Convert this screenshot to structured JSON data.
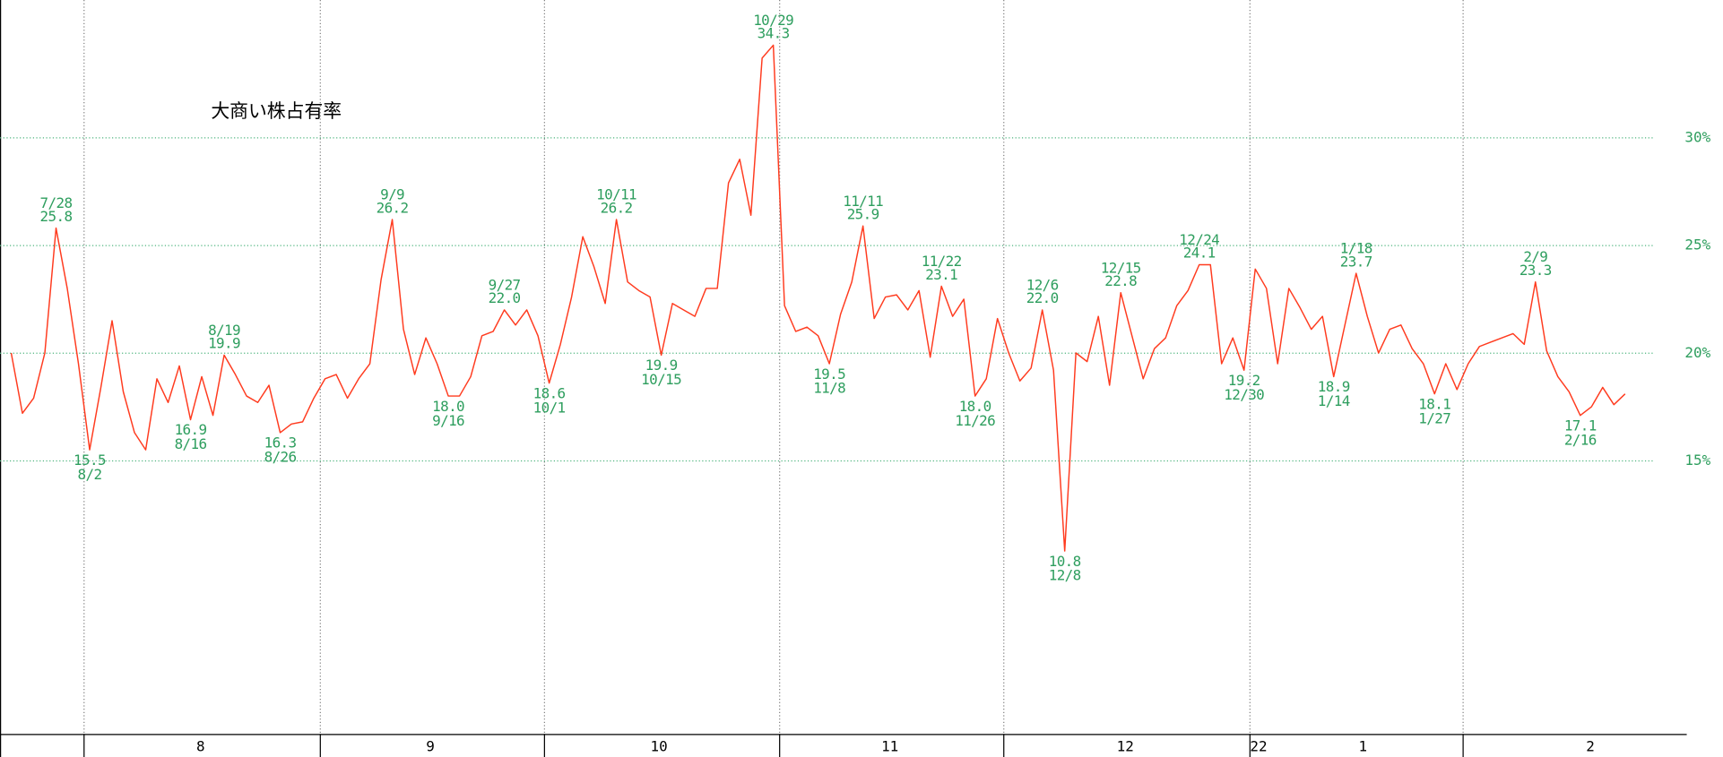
{
  "chart_data": {
    "type": "line",
    "title": "大商い株占有率",
    "color": "#ff3b1f",
    "categories": [
      null,
      null,
      null,
      null,
      "7/28",
      null,
      null,
      "8/2",
      null,
      null,
      null,
      null,
      null,
      null,
      null,
      null,
      "8/16",
      null,
      null,
      "8/19",
      null,
      null,
      null,
      null,
      "8/26",
      null,
      null,
      null,
      null,
      null,
      null,
      null,
      null,
      null,
      "9/9",
      null,
      null,
      null,
      null,
      "9/16",
      null,
      null,
      null,
      null,
      "9/27",
      null,
      null,
      null,
      "10/1",
      null,
      null,
      null,
      null,
      null,
      "10/11",
      null,
      null,
      null,
      "10/15",
      null,
      null,
      null,
      null,
      null,
      null,
      null,
      null,
      null,
      "10/29",
      null,
      null,
      null,
      null,
      "11/8",
      null,
      null,
      "11/11",
      null,
      null,
      null,
      null,
      null,
      null,
      "11/22",
      null,
      null,
      "11/26",
      null,
      null,
      null,
      null,
      null,
      "12/6",
      null,
      "12/8",
      null,
      null,
      null,
      null,
      "12/15",
      null,
      null,
      null,
      null,
      null,
      null,
      "12/24",
      null,
      null,
      null,
      "12/30",
      null,
      null,
      null,
      null,
      null,
      null,
      null,
      "1/14",
      null,
      "1/18",
      null,
      null,
      null,
      null,
      null,
      null,
      "1/27",
      null,
      null,
      null,
      null,
      null,
      null,
      null,
      null,
      "2/9",
      null,
      null,
      null,
      "2/16",
      null,
      null,
      null,
      null
    ],
    "values": [
      20.0,
      17.2,
      17.9,
      20.0,
      25.8,
      23.0,
      19.5,
      15.5,
      18.4,
      21.5,
      18.2,
      16.3,
      15.5,
      18.8,
      17.7,
      19.4,
      16.9,
      18.9,
      17.1,
      19.9,
      19.0,
      18.0,
      17.7,
      18.5,
      16.3,
      16.7,
      16.8,
      17.9,
      18.8,
      19.0,
      17.9,
      18.8,
      19.5,
      23.4,
      26.2,
      21.1,
      19.0,
      20.7,
      19.5,
      18.0,
      18.0,
      18.9,
      20.8,
      21.0,
      22.0,
      21.3,
      22.0,
      20.8,
      18.6,
      20.4,
      22.6,
      25.4,
      24.0,
      22.3,
      26.2,
      23.3,
      22.9,
      22.6,
      19.9,
      22.3,
      22.0,
      21.7,
      23.0,
      23.0,
      27.9,
      29.0,
      26.4,
      33.7,
      34.3,
      22.2,
      21.0,
      21.2,
      20.8,
      19.5,
      21.8,
      23.3,
      25.9,
      21.6,
      22.6,
      22.7,
      22.0,
      22.9,
      19.8,
      23.1,
      21.7,
      22.5,
      18.0,
      18.8,
      21.6,
      20.0,
      18.7,
      19.3,
      22.0,
      19.2,
      10.8,
      20.0,
      19.6,
      21.7,
      18.5,
      22.8,
      20.8,
      18.8,
      20.2,
      20.7,
      22.2,
      22.9,
      24.1,
      24.1,
      19.5,
      20.7,
      19.2,
      23.9,
      23.0,
      19.5,
      23.0,
      22.1,
      21.1,
      21.7,
      18.9,
      21.3,
      23.7,
      21.7,
      20.0,
      21.1,
      21.3,
      20.2,
      19.5,
      18.1,
      19.5,
      18.3,
      19.5,
      20.3,
      20.5,
      20.7,
      20.9,
      20.4,
      23.3,
      20.1,
      18.9,
      18.2,
      17.1,
      17.5,
      18.4,
      17.6,
      18.1
    ],
    "value_labels": [
      null,
      null,
      null,
      null,
      "25.8",
      null,
      null,
      "15.5",
      null,
      null,
      null,
      null,
      null,
      null,
      null,
      null,
      "16.9",
      null,
      null,
      "19.9",
      null,
      null,
      null,
      null,
      "16.3",
      null,
      null,
      null,
      null,
      null,
      null,
      null,
      null,
      null,
      "26.2",
      null,
      null,
      null,
      null,
      "18.0",
      null,
      null,
      null,
      null,
      "22.0",
      null,
      null,
      null,
      "18.6",
      null,
      null,
      null,
      null,
      null,
      "26.2",
      null,
      null,
      null,
      "19.9",
      null,
      null,
      null,
      null,
      null,
      null,
      null,
      null,
      null,
      "34.3",
      null,
      null,
      null,
      null,
      "19.5",
      null,
      null,
      "25.9",
      null,
      null,
      null,
      null,
      null,
      null,
      "23.1",
      null,
      null,
      "18.0",
      null,
      null,
      null,
      null,
      null,
      "22.0",
      null,
      "10.8",
      null,
      null,
      null,
      null,
      "22.8",
      null,
      null,
      null,
      null,
      null,
      null,
      "24.1",
      null,
      null,
      null,
      "19.2",
      null,
      null,
      null,
      null,
      null,
      null,
      null,
      "18.9",
      null,
      "23.7",
      null,
      null,
      null,
      null,
      null,
      null,
      "18.1",
      null,
      null,
      null,
      null,
      null,
      null,
      null,
      null,
      "23.3",
      null,
      null,
      null,
      "17.1",
      null,
      null,
      null,
      null
    ],
    "xlim": [
      -1,
      149.5
    ],
    "xticks": [
      6.5,
      27.5,
      47.5,
      68.5,
      88.5,
      110.5,
      129.5
    ],
    "x_labels": [
      {
        "value": 16.9,
        "label": "8"
      },
      {
        "value": 37.4,
        "label": "9"
      },
      {
        "value": 57.8,
        "label": "10"
      },
      {
        "value": 78.4,
        "label": "11"
      },
      {
        "value": 99.4,
        "label": "12"
      },
      {
        "value": 111.3,
        "label": "22"
      },
      {
        "value": 120.6,
        "label": "1"
      },
      {
        "value": 140.9,
        "label": "2"
      }
    ],
    "ylim": [
      2.3,
      36.4
    ],
    "yticks": [
      {
        "value": 15,
        "label": "15%"
      },
      {
        "value": 20,
        "label": "20%"
      },
      {
        "value": 25,
        "label": "25%"
      },
      {
        "value": 30,
        "label": "30%"
      }
    ],
    "grid": true
  }
}
